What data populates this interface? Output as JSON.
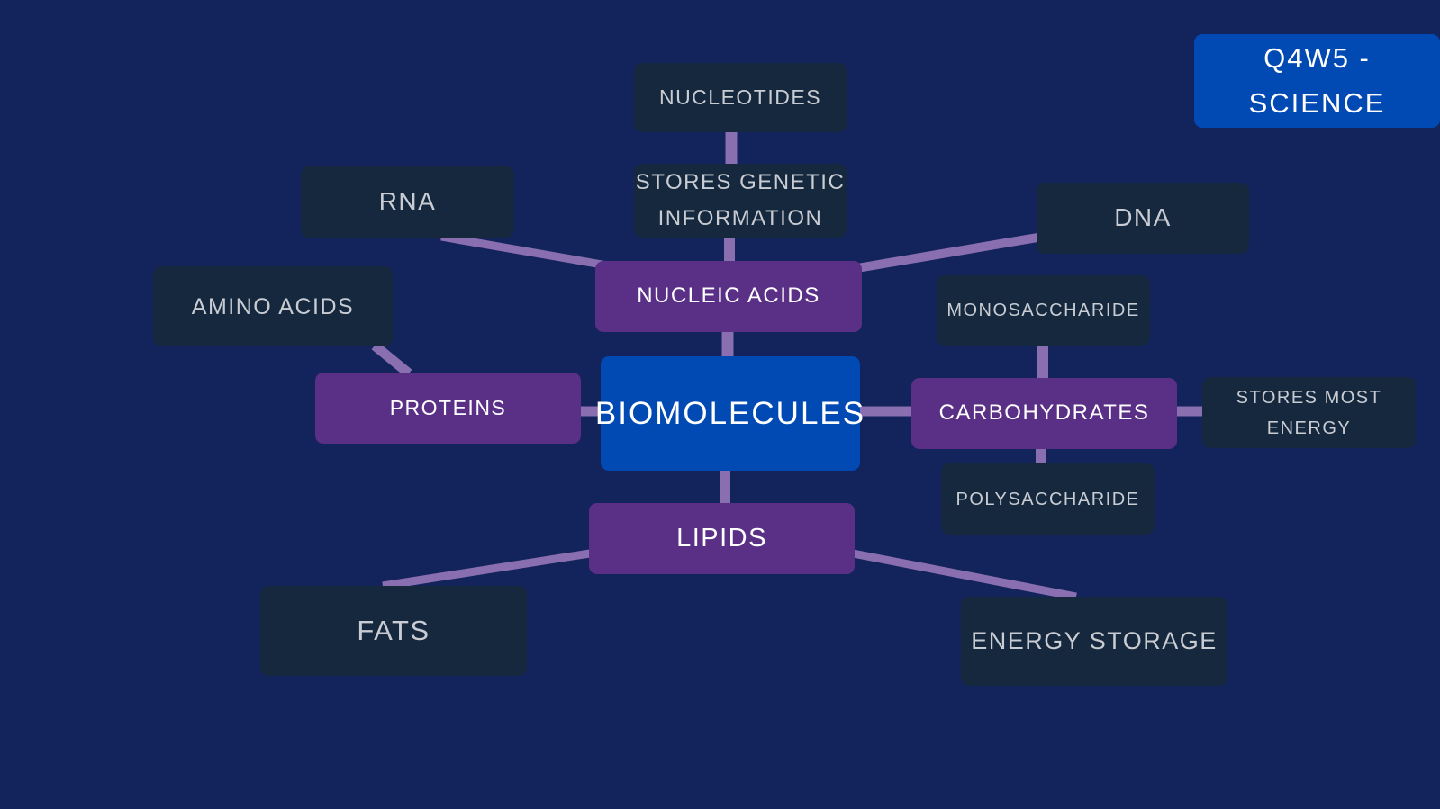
{
  "title_badge": {
    "line1": "Q4W5 -",
    "line2": "SCIENCE"
  },
  "central": {
    "label": "BIOMOLECULES"
  },
  "nodes": {
    "nucleic_acids": "NUCLEIC ACIDS",
    "proteins": "PROTEINS",
    "carbohydrates": "CARBOHYDRATES",
    "lipids": "LIPIDS",
    "nucleotides": "NUCLEOTIDES",
    "stores_genetic_line1": "STORES GENETIC",
    "stores_genetic_line2": "INFORMATION",
    "rna": "RNA",
    "dna": "DNA",
    "amino_acids": "AMINO ACIDS",
    "monosaccharide": "MONOSACCHARIDE",
    "polysaccharide": "POLYSACCHARIDE",
    "stores_energy_line1": "STORES MOST",
    "stores_energy_line2": "ENERGY",
    "fats": "FATS",
    "energy_storage": "ENERGY STORAGE"
  },
  "colors": {
    "background": "#13235c",
    "connector": "#8a6fb0",
    "category_box": "#5a2f86",
    "central_box": "#0149b3",
    "detail_box": "#15283d",
    "detail_text": "#c9ccd3"
  }
}
